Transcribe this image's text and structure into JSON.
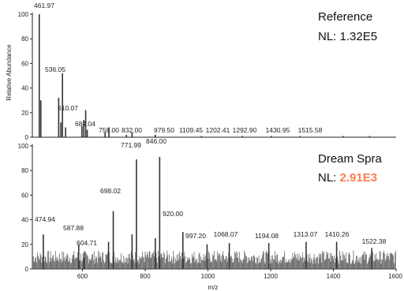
{
  "colors": {
    "axis": "#222222",
    "trace": "#333333",
    "highlight": "#ff7b4f",
    "accent": "#6aa0d0"
  },
  "chart_data": [
    {
      "type": "bar",
      "title": "Reference",
      "nl_label": "NL:",
      "nl_value": "1.32E5",
      "ylabel": "Relative Abundance",
      "xlabel": "",
      "xlim": [
        440,
        1600
      ],
      "ylim": [
        0,
        100
      ],
      "yticks": [
        0,
        20,
        40,
        60,
        80,
        100
      ],
      "peak_labels": [
        "461.97",
        "536.05",
        "610.07",
        "684.04",
        "758.00",
        "832.00",
        "979.50",
        "1109.45",
        "1202.41",
        "1292.90",
        "1430.95",
        "1515.58"
      ],
      "peaks": [
        {
          "x": 461.97,
          "y": 100
        },
        {
          "x": 467,
          "y": 30
        },
        {
          "x": 524,
          "y": 32
        },
        {
          "x": 531,
          "y": 12
        },
        {
          "x": 536.05,
          "y": 52
        },
        {
          "x": 546,
          "y": 8
        },
        {
          "x": 598,
          "y": 9
        },
        {
          "x": 604,
          "y": 14
        },
        {
          "x": 610.07,
          "y": 22
        },
        {
          "x": 615,
          "y": 6
        },
        {
          "x": 672,
          "y": 4
        },
        {
          "x": 684.04,
          "y": 8
        },
        {
          "x": 740,
          "y": 2
        },
        {
          "x": 758.0,
          "y": 4
        },
        {
          "x": 832.0,
          "y": 2
        },
        {
          "x": 979.5,
          "y": 1
        },
        {
          "x": 1109.45,
          "y": 1
        },
        {
          "x": 1202.41,
          "y": 1
        },
        {
          "x": 1292.9,
          "y": 1
        },
        {
          "x": 1430.95,
          "y": 1
        },
        {
          "x": 1515.58,
          "y": 1
        }
      ]
    },
    {
      "type": "bar",
      "title": "Dream Spra",
      "nl_label": "NL:",
      "nl_value": "2.91E3",
      "xlabel": "m/z",
      "ylabel": "",
      "xlim": [
        440,
        1600
      ],
      "ylim": [
        0,
        100
      ],
      "yticks": [
        0,
        20,
        40,
        60,
        80,
        100
      ],
      "xticks": [
        600,
        800,
        1000,
        1200,
        1400,
        1600
      ],
      "noise_level": 12,
      "peak_labels": [
        "474.94",
        "587.88",
        "604.71",
        "698.02",
        "771.99",
        "846.00",
        "920.00",
        "997.20",
        "1068.07",
        "1194.08",
        "1313.07",
        "1410.26",
        "1522.38"
      ],
      "peaks": [
        {
          "x": 474.94,
          "y": 28
        },
        {
          "x": 587.88,
          "y": 20
        },
        {
          "x": 604.71,
          "y": 9
        },
        {
          "x": 683,
          "y": 22
        },
        {
          "x": 698.02,
          "y": 47
        },
        {
          "x": 758,
          "y": 28
        },
        {
          "x": 771.99,
          "y": 89
        },
        {
          "x": 832,
          "y": 25
        },
        {
          "x": 846.0,
          "y": 91
        },
        {
          "x": 920.0,
          "y": 30
        },
        {
          "x": 997.2,
          "y": 20
        },
        {
          "x": 1068.07,
          "y": 21
        },
        {
          "x": 1194.08,
          "y": 21
        },
        {
          "x": 1313.07,
          "y": 22
        },
        {
          "x": 1410.26,
          "y": 22
        },
        {
          "x": 1522.38,
          "y": 17
        }
      ]
    }
  ]
}
